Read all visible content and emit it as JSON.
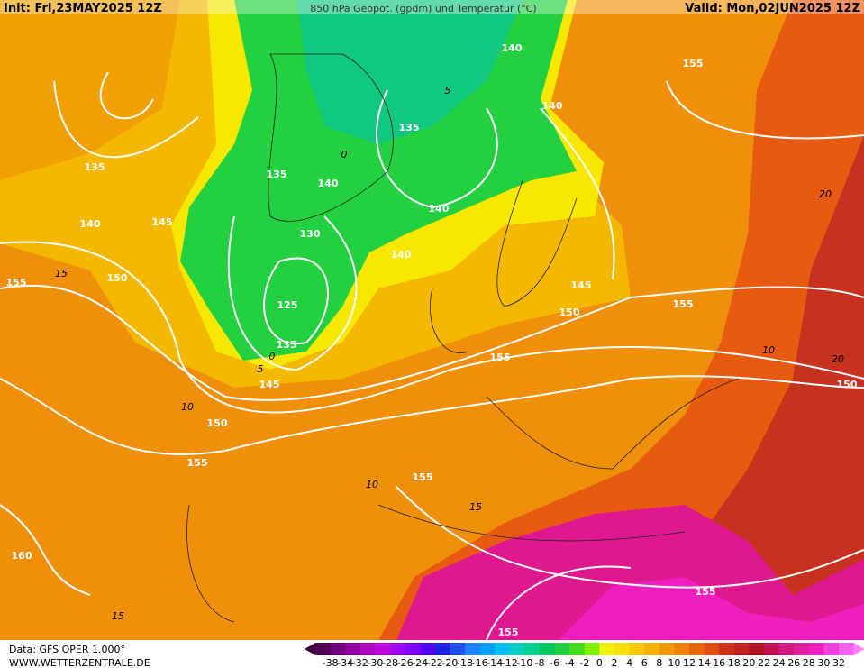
{
  "header": {
    "init": "Init: Fri,23MAY2025 12Z",
    "title": "850 hPa Geopot. (gpdm) und Temperatur (°C)",
    "valid": "Valid: Mon,02JUN2025 12Z"
  },
  "footer": {
    "data": "Data: GFS OPER 1.000°",
    "site": "WWW.WETTERZENTRALE.DE"
  },
  "colorbar": {
    "labels": [
      "-38",
      "-34",
      "-32",
      "-30",
      "-28",
      "-26",
      "-24",
      "-22",
      "-20",
      "-18",
      "-16",
      "-14",
      "-12",
      "-10",
      "-8",
      "-6",
      "-4",
      "-2",
      "0",
      "2",
      "4",
      "6",
      "8",
      "10",
      "12",
      "14",
      "16",
      "18",
      "20",
      "22",
      "24",
      "26",
      "28",
      "30",
      "32"
    ]
  },
  "geopotential_labels": [
    "140",
    "155",
    "140",
    "135",
    "135",
    "135",
    "140",
    "140",
    "140",
    "145",
    "130",
    "140",
    "155",
    "150",
    "145",
    "150",
    "155",
    "125",
    "135",
    "155",
    "145",
    "150",
    "150",
    "155",
    "155",
    "160",
    "155",
    "155"
  ],
  "temperature_labels": [
    "5",
    "0",
    "15",
    "10",
    "10",
    "15",
    "10",
    "20",
    "15",
    "5",
    "0",
    "20"
  ]
}
